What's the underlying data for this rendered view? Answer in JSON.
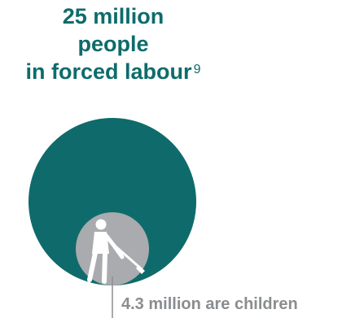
{
  "headline": {
    "line1": "25 million",
    "line2": "people",
    "line3": "in forced labour",
    "footnote": "9"
  },
  "subset_label": "4.3 million are children",
  "figures": {
    "total_millions": 25,
    "children_millions": 4.3
  },
  "colors": {
    "teal": "#0f6b6b",
    "grey": "#8a8d90",
    "child_circle": "#a9abae"
  },
  "icons": {
    "figure": "child-worker-with-tool-icon"
  }
}
